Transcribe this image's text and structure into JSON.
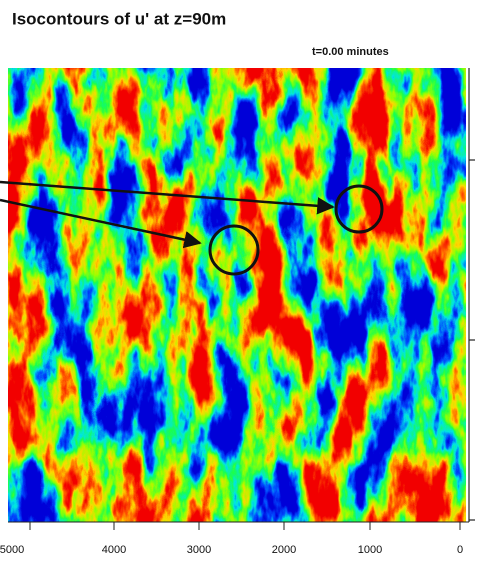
{
  "title": "Isocontours of u' at z=90m",
  "timestamp": "t=0.00 minutes",
  "x_axis": {
    "tick_labels": [
      "5000",
      "4000",
      "3000",
      "2000",
      "1000",
      "0"
    ]
  }
}
